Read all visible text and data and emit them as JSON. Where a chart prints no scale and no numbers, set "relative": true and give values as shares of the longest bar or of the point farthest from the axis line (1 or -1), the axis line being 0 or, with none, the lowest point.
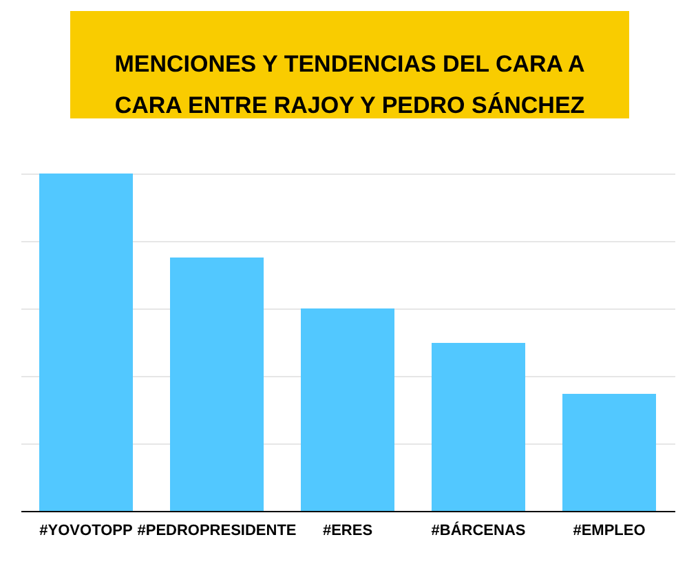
{
  "chart_data": {
    "type": "bar",
    "title": "MENCIONES Y TENDENCIAS DEL CARA A CARA ENTRE RAJOY Y PEDRO SÁNCHEZ",
    "categories": [
      "#YOVOTOPP",
      "#PEDROPRESIDENTE",
      "#ERES",
      "#BÁRCENAS",
      "#EMPLEO"
    ],
    "values": [
      1,
      0.751,
      0.6,
      0.498,
      0.347
    ],
    "color": "#52c8ff",
    "relative": true,
    "grid": true
  }
}
